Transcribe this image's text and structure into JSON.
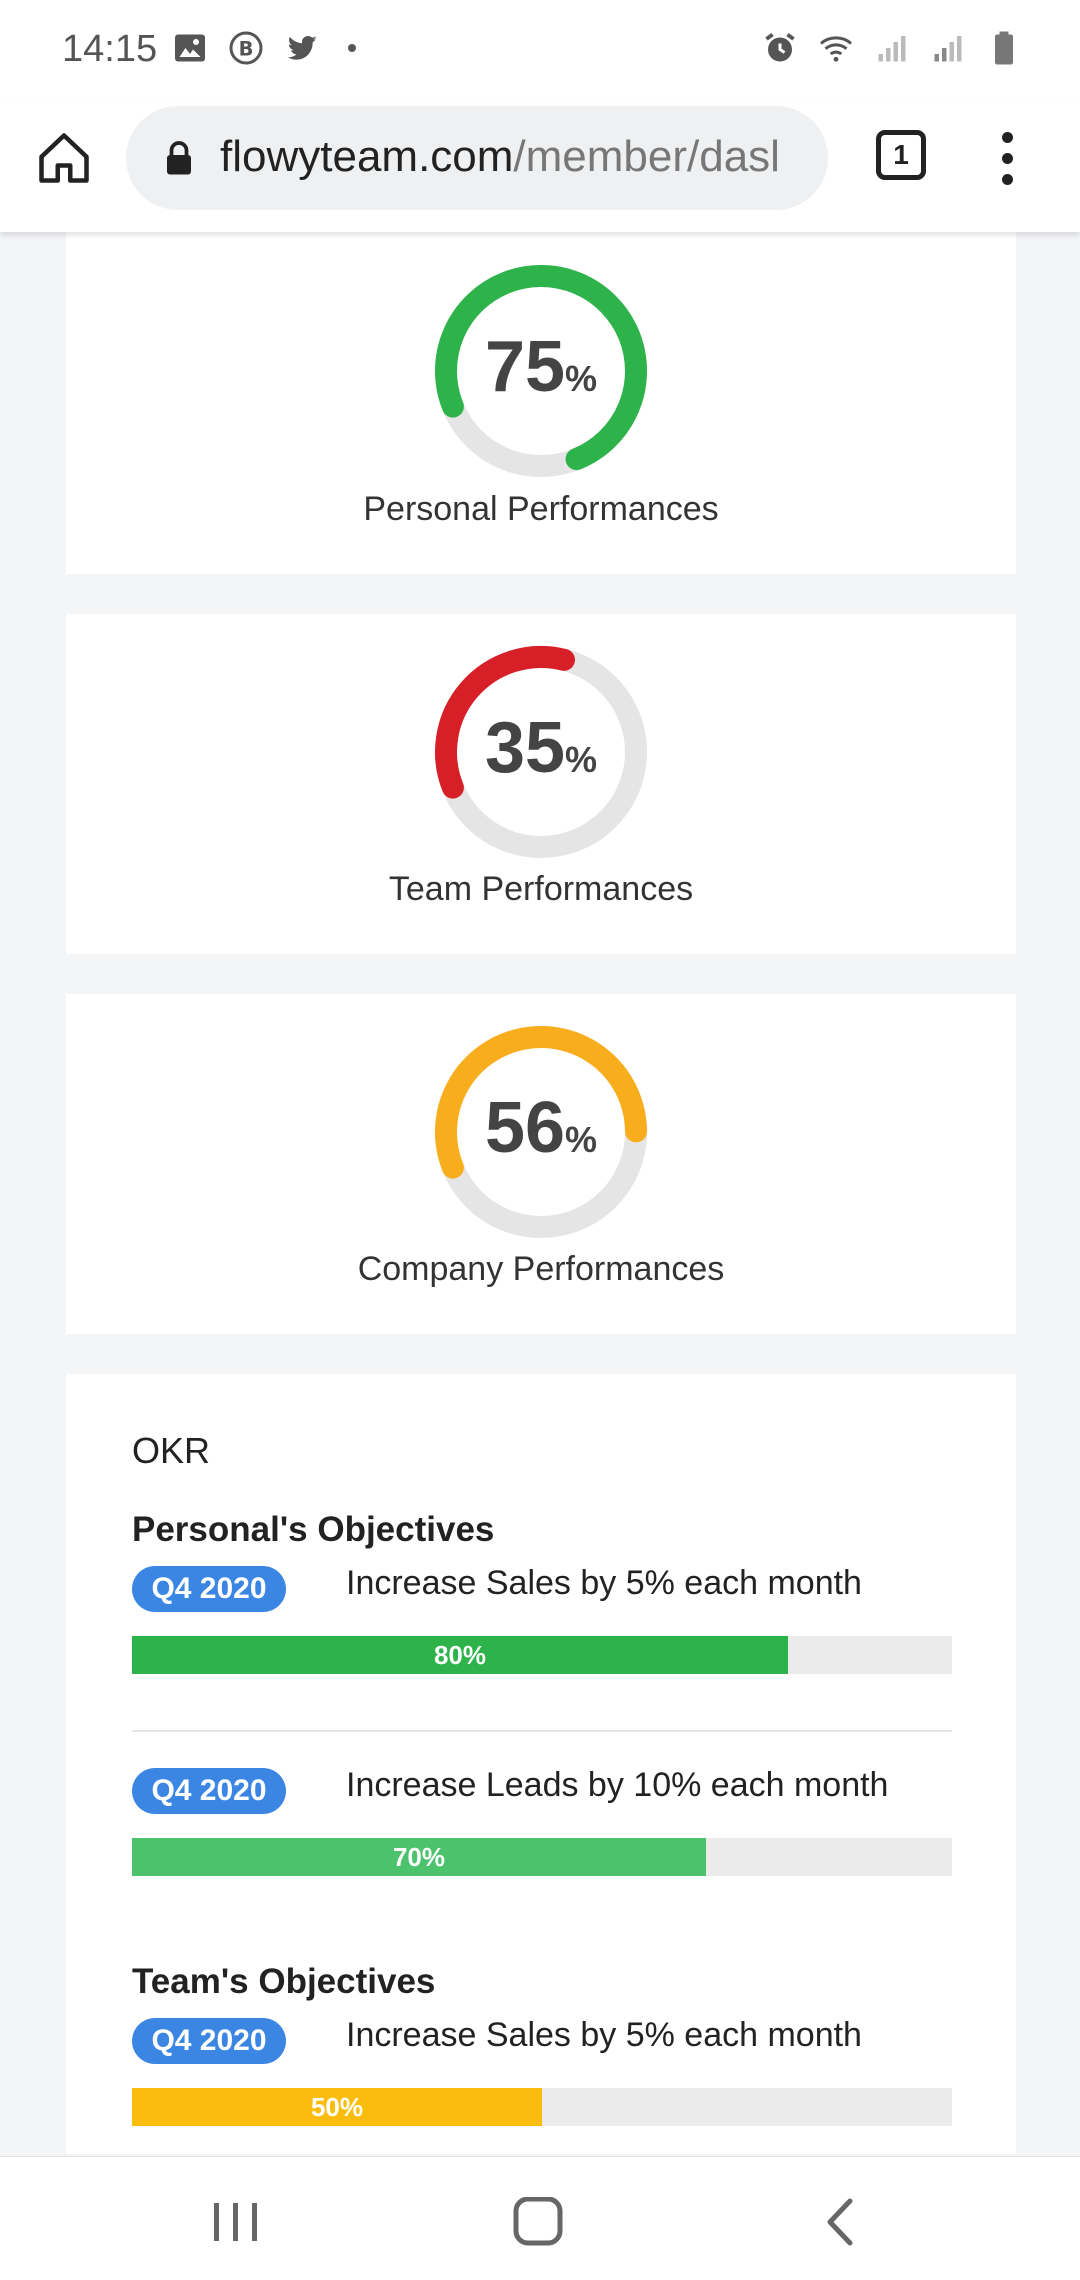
{
  "status_bar": {
    "time": "14:15",
    "left_icons": [
      "image-icon",
      "b-badge-icon",
      "twitter-icon",
      "dot-icon"
    ],
    "right_icons": [
      "alarm-icon",
      "wifi-icon",
      "signal-icon",
      "signal-icon",
      "battery-icon"
    ]
  },
  "browser": {
    "url_host": "flowyteam.com",
    "url_path": "/member/dasl",
    "tab_count": "1"
  },
  "gauges": [
    {
      "value": "75",
      "unit": "%",
      "label": "Personal Performances",
      "percent": 75,
      "color": "#2db34a"
    },
    {
      "value": "35",
      "unit": "%",
      "label": "Team Performances",
      "percent": 35,
      "color": "#d71f27"
    },
    {
      "value": "56",
      "unit": "%",
      "label": "Company Performances",
      "percent": 56,
      "color": "#f8ad1d"
    }
  ],
  "okr": {
    "title": "OKR",
    "personal_title": "Personal's Objectives",
    "team_title": "Team's Objectives",
    "objectives": [
      {
        "badge": "Q4 2020",
        "text": "Increase Sales by 5% each month",
        "progress_label": "80%",
        "progress": 0.8,
        "color": "#2db34a"
      },
      {
        "badge": "Q4 2020",
        "text": "Increase Leads by 10% each month",
        "progress_label": "70%",
        "progress": 0.7,
        "color": "#4dc26c"
      },
      {
        "badge": "Q4 2020",
        "text": "Increase Sales by 5% each month",
        "progress_label": "50%",
        "progress": 0.5,
        "color": "#fbbd0d"
      }
    ]
  },
  "nav_bar": {
    "buttons": [
      "recent-apps-icon",
      "home-icon",
      "back-icon"
    ]
  }
}
